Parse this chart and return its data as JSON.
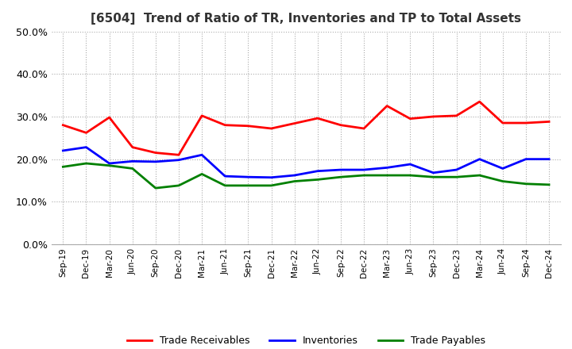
{
  "title": "[6504]  Trend of Ratio of TR, Inventories and TP to Total Assets",
  "x_labels": [
    "Sep-19",
    "Dec-19",
    "Mar-20",
    "Jun-20",
    "Sep-20",
    "Dec-20",
    "Mar-21",
    "Jun-21",
    "Sep-21",
    "Dec-21",
    "Mar-22",
    "Jun-22",
    "Sep-22",
    "Dec-22",
    "Mar-23",
    "Jun-23",
    "Sep-23",
    "Dec-23",
    "Mar-24",
    "Jun-24",
    "Sep-24",
    "Dec-24"
  ],
  "trade_receivables": [
    0.28,
    0.262,
    0.298,
    0.228,
    0.215,
    0.21,
    0.302,
    0.28,
    0.278,
    0.272,
    0.284,
    0.296,
    0.28,
    0.272,
    0.325,
    0.295,
    0.3,
    0.302,
    0.335,
    0.285,
    0.285,
    0.288
  ],
  "inventories": [
    0.22,
    0.228,
    0.19,
    0.195,
    0.194,
    0.198,
    0.21,
    0.16,
    0.158,
    0.157,
    0.162,
    0.172,
    0.175,
    0.175,
    0.18,
    0.188,
    0.168,
    0.175,
    0.2,
    0.178,
    0.2,
    0.2
  ],
  "trade_payables": [
    0.182,
    0.19,
    0.185,
    0.178,
    0.132,
    0.138,
    0.165,
    0.138,
    0.138,
    0.138,
    0.148,
    0.152,
    0.158,
    0.162,
    0.162,
    0.162,
    0.158,
    0.158,
    0.162,
    0.148,
    0.142,
    0.14
  ],
  "ylim": [
    0.0,
    0.5
  ],
  "yticks": [
    0.0,
    0.1,
    0.2,
    0.3,
    0.4,
    0.5
  ],
  "color_tr": "#ff0000",
  "color_inv": "#0000ff",
  "color_tp": "#008000",
  "bg_color": "#ffffff",
  "grid_color": "#aaaaaa"
}
